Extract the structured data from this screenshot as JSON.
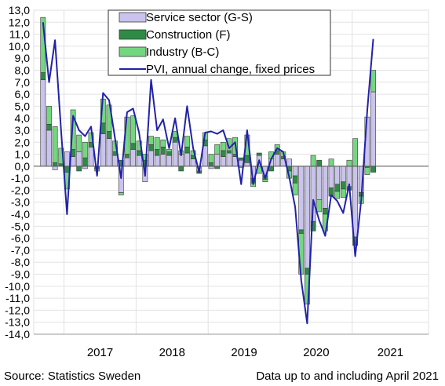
{
  "chart_data": {
    "type": "bar",
    "stacked": true,
    "title": "",
    "xlabel": "",
    "ylabel": "",
    "ylim": [
      -14,
      13
    ],
    "ytick_step": 1,
    "grid": true,
    "legend_position": "top-left",
    "year_labels": [
      "2017",
      "2018",
      "2019",
      "2020",
      "2021"
    ],
    "months": [
      "2016-09",
      "2016-10",
      "2016-11",
      "2016-12",
      "2017-01",
      "2017-02",
      "2017-03",
      "2017-04",
      "2017-05",
      "2017-06",
      "2017-07",
      "2017-08",
      "2017-09",
      "2017-10",
      "2017-11",
      "2017-12",
      "2018-01",
      "2018-02",
      "2018-03",
      "2018-04",
      "2018-05",
      "2018-06",
      "2018-07",
      "2018-08",
      "2018-09",
      "2018-10",
      "2018-11",
      "2018-12",
      "2019-01",
      "2019-02",
      "2019-03",
      "2019-04",
      "2019-05",
      "2019-06",
      "2019-07",
      "2019-08",
      "2019-09",
      "2019-10",
      "2019-11",
      "2019-12",
      "2020-01",
      "2020-02",
      "2020-03",
      "2020-04",
      "2020-05",
      "2020-06",
      "2020-07",
      "2020-08",
      "2020-09",
      "2020-10",
      "2020-11",
      "2020-12",
      "2021-01",
      "2021-02",
      "2021-03",
      "2021-04"
    ],
    "series": [
      {
        "name": "Service sector (G-S)",
        "color": "#c9c3ee",
        "values": [
          7.2,
          3.0,
          -0.3,
          0.0,
          1.2,
          0.8,
          1.2,
          -0.2,
          1.6,
          0.0,
          2.7,
          2.3,
          0.9,
          -2.2,
          0.7,
          1.4,
          0.9,
          -1.3,
          1.3,
          0.9,
          1.0,
          0.9,
          2.0,
          1.0,
          1.1,
          0.6,
          -0.4,
          1.7,
          -0.2,
          1.0,
          0.8,
          1.1,
          0.8,
          0.5,
          0.3,
          -1.0,
          0.9,
          -0.8,
          0.6,
          1.0,
          0.6,
          0.6,
          -0.8,
          -5.3,
          -8.5,
          -4.6,
          -2.8,
          -3.5,
          -1.8,
          -1.5,
          -1.3,
          -1.7,
          -5.9,
          -2.2,
          4.1,
          6.2
        ]
      },
      {
        "name": "Construction (F)",
        "color": "#2e8b45",
        "values": [
          0.6,
          0.5,
          0.3,
          0.2,
          -0.5,
          0.6,
          -0.4,
          0.7,
          0.4,
          -0.2,
          0.9,
          0.6,
          0.3,
          0.5,
          0.3,
          0.5,
          0.4,
          0.5,
          0.5,
          0.5,
          0.6,
          0.3,
          0.4,
          -0.4,
          0.5,
          0.3,
          -0.2,
          0.5,
          0.3,
          -0.2,
          0.5,
          0.2,
          0.2,
          0.2,
          0.6,
          -0.4,
          0.2,
          -0.3,
          -0.4,
          0.3,
          0.2,
          -0.4,
          -0.6,
          -0.3,
          -0.5,
          -0.8,
          0.5,
          -0.5,
          -0.7,
          -0.6,
          -0.6,
          -0.3,
          -0.7,
          -0.3,
          -0.1,
          -0.5
        ]
      },
      {
        "name": "Industry (B-C)",
        "color": "#73d77f",
        "values": [
          4.6,
          1.5,
          3.0,
          1.3,
          -1.4,
          3.3,
          1.4,
          1.3,
          0.8,
          -0.2,
          2.0,
          2.2,
          0.9,
          -0.2,
          3.1,
          2.3,
          0.8,
          0.5,
          0.7,
          1.0,
          0.6,
          0.2,
          0.5,
          0.3,
          0.9,
          0.4,
          0.0,
          0.6,
          0.7,
          0.8,
          0.7,
          1.0,
          1.4,
          -0.1,
          1.7,
          -0.3,
          -0.6,
          -0.2,
          0.6,
          0.5,
          0.4,
          -0.6,
          -1.0,
          -3.4,
          -2.5,
          0.9,
          -1.0,
          -1.4,
          0.6,
          -0.6,
          -0.7,
          0.5,
          2.3,
          -0.6,
          -0.6,
          1.8
        ]
      },
      {
        "name": "PVI, annual change, fixed prices",
        "type": "line",
        "color": "#2222a8",
        "values": [
          12.0,
          7.0,
          10.5,
          3.0,
          -4.0,
          4.2,
          3.0,
          2.5,
          3.3,
          -0.8,
          6.1,
          5.5,
          2.3,
          -1.0,
          4.5,
          4.8,
          2.8,
          -0.8,
          7.2,
          3.0,
          3.9,
          1.5,
          4.0,
          0.9,
          5.0,
          1.5,
          -0.5,
          2.8,
          2.9,
          2.7,
          3.0,
          1.5,
          2.0,
          -1.5,
          3.0,
          -1.5,
          0.5,
          -1.0,
          0.6,
          1.5,
          1.2,
          -0.9,
          -3.4,
          -9.5,
          -13.1,
          -2.8,
          -4.5,
          -5.8,
          -2.4,
          -2.9,
          -3.9,
          -1.5,
          -7.5,
          -2.8,
          4.6,
          10.6
        ]
      }
    ]
  },
  "footer": {
    "source": "Source: Statistics Sweden",
    "note": "Data up to and including April 2021"
  }
}
